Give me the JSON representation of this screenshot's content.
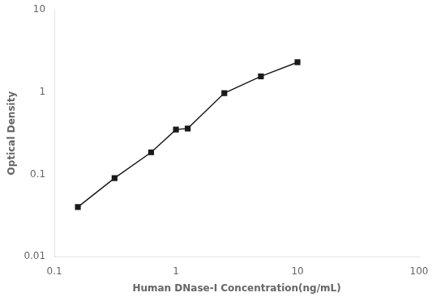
{
  "chart_data": {
    "type": "line",
    "x": [
      0.156,
      0.3125,
      0.625,
      1.0,
      1.25,
      2.5,
      5.0,
      10.0
    ],
    "values": [
      0.04,
      0.09,
      0.185,
      0.35,
      0.36,
      0.97,
      1.55,
      2.3
    ],
    "xlabel": "Human DNase-I Concentration(ng/mL)",
    "ylabel": "Optical Density",
    "xlim": [
      0.1,
      100
    ],
    "ylim": [
      0.01,
      10
    ],
    "xticks": [
      0.1,
      1,
      10,
      100
    ],
    "yticks": [
      0.01,
      0.1,
      1,
      10
    ],
    "log": true,
    "grid": false,
    "marker": "square",
    "color": "#1a1a1a"
  }
}
